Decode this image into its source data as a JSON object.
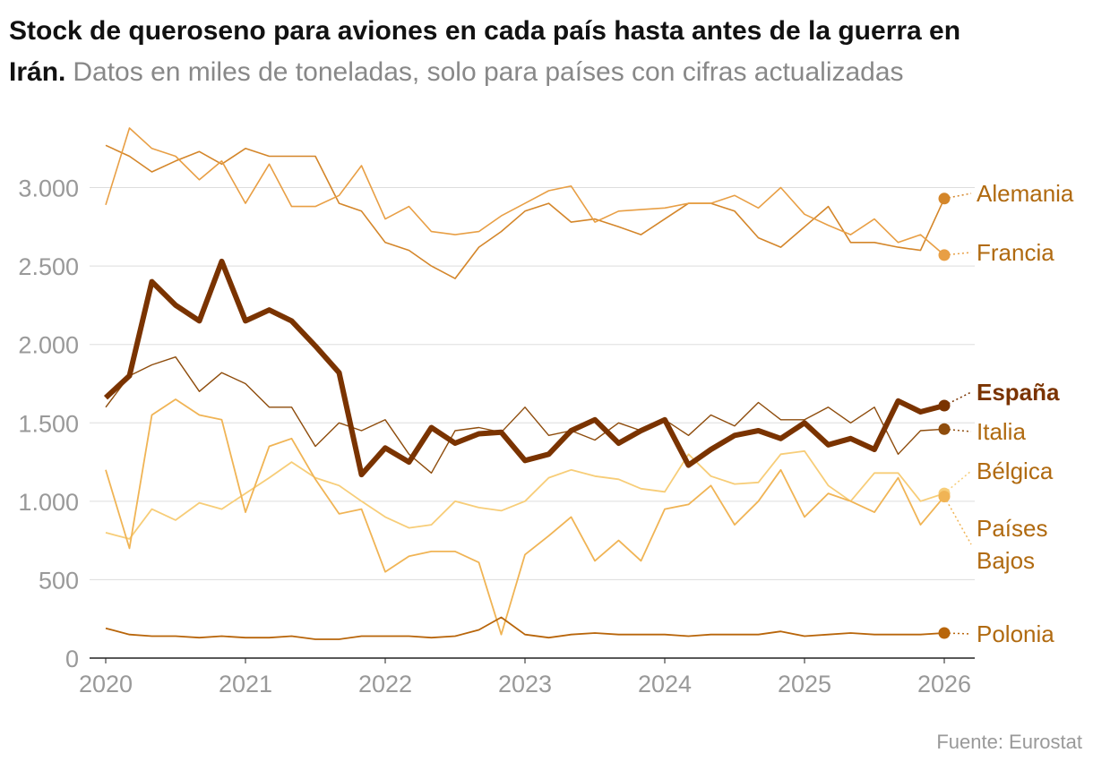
{
  "chart_data": {
    "type": "line",
    "title": "Stock de queroseno para aviones en cada país hasta antes de la guerra en Irán.",
    "subtitle": "Datos en miles de toneladas, solo para países con cifras actualizadas",
    "source": "Fuente: Eurostat",
    "x": [
      2020,
      2020.17,
      2020.33,
      2020.5,
      2020.67,
      2020.83,
      2021,
      2021.17,
      2021.33,
      2021.5,
      2021.67,
      2021.83,
      2022,
      2022.17,
      2022.33,
      2022.5,
      2022.67,
      2022.83,
      2023,
      2023.17,
      2023.33,
      2023.5,
      2023.67,
      2023.83,
      2024,
      2024.17,
      2024.33,
      2024.5,
      2024.67,
      2024.83,
      2025,
      2025.17,
      2025.33,
      2025.5,
      2025.67,
      2025.83,
      2026
    ],
    "xlim": [
      2020,
      2026
    ],
    "xticks": [
      2020,
      2021,
      2022,
      2023,
      2024,
      2025,
      2026
    ],
    "ylim": [
      0,
      3300
    ],
    "yticks": [
      0,
      500,
      {
        "value": 1000,
        "label": "1.000"
      },
      {
        "value": 1500,
        "label": "1.500"
      },
      {
        "value": 2000,
        "label": "2.000"
      },
      {
        "value": 2500,
        "label": "2.500"
      },
      {
        "value": 3000,
        "label": "3.000"
      }
    ],
    "grid": true,
    "series": [
      {
        "name": "Alemania",
        "color": "#d4862a",
        "values": [
          3270,
          3200,
          3100,
          3170,
          3230,
          3150,
          3250,
          3200,
          3200,
          3200,
          2900,
          2850,
          2650,
          2600,
          2500,
          2420,
          2620,
          2720,
          2850,
          2900,
          2780,
          2800,
          2750,
          2700,
          2800,
          2900,
          2900,
          2850,
          2680,
          2620,
          2750,
          2880,
          2650,
          2650,
          2620,
          2600,
          2930
        ]
      },
      {
        "name": "Francia",
        "color": "#e89f45",
        "values": [
          2890,
          3380,
          3250,
          3200,
          3050,
          3170,
          2900,
          3150,
          2880,
          2880,
          2950,
          3140,
          2800,
          2880,
          2720,
          2700,
          2720,
          2820,
          2900,
          2980,
          3010,
          2780,
          2850,
          2860,
          2870,
          2900,
          2900,
          2950,
          2870,
          3000,
          2830,
          2760,
          2700,
          2800,
          2650,
          2700,
          2570
        ]
      },
      {
        "name": "España",
        "color": "#7a3300",
        "values": [
          1660,
          1800,
          2400,
          2250,
          2150,
          2530,
          2150,
          2220,
          2150,
          1990,
          1820,
          1170,
          1340,
          1250,
          1470,
          1370,
          1430,
          1440,
          1260,
          1300,
          1450,
          1520,
          1370,
          1450,
          1520,
          1230,
          1330,
          1420,
          1450,
          1400,
          1500,
          1360,
          1400,
          1330,
          1640,
          1570,
          1610
        ]
      },
      {
        "name": "Italia",
        "color": "#8e4c0c",
        "values": [
          1600,
          1800,
          1870,
          1920,
          1700,
          1820,
          1750,
          1600,
          1600,
          1350,
          1500,
          1450,
          1520,
          1300,
          1180,
          1450,
          1470,
          1440,
          1600,
          1420,
          1450,
          1390,
          1500,
          1450,
          1520,
          1420,
          1550,
          1480,
          1630,
          1520,
          1520,
          1600,
          1500,
          1600,
          1300,
          1450,
          1460
        ]
      },
      {
        "name": "Bélgica",
        "color": "#f7cd78",
        "values": [
          800,
          760,
          950,
          880,
          990,
          950,
          1050,
          1150,
          1250,
          1150,
          1100,
          1000,
          900,
          830,
          850,
          1000,
          960,
          940,
          1000,
          1150,
          1200,
          1160,
          1140,
          1080,
          1060,
          1300,
          1160,
          1110,
          1120,
          1300,
          1320,
          1100,
          1000,
          1180,
          1180,
          1000,
          1050
        ]
      },
      {
        "name": "Países Bajos",
        "color": "#f0b455",
        "values": [
          1200,
          700,
          1550,
          1650,
          1550,
          1520,
          930,
          1350,
          1400,
          1140,
          920,
          950,
          550,
          650,
          680,
          680,
          610,
          150,
          660,
          780,
          900,
          620,
          750,
          620,
          950,
          980,
          1100,
          850,
          1000,
          1200,
          900,
          1050,
          1000,
          930,
          1150,
          850,
          1030
        ]
      },
      {
        "name": "Polonia",
        "color": "#b8650a",
        "values": [
          190,
          150,
          140,
          140,
          130,
          140,
          130,
          130,
          140,
          120,
          120,
          140,
          140,
          140,
          130,
          140,
          180,
          260,
          150,
          130,
          150,
          160,
          150,
          150,
          150,
          140,
          150,
          150,
          150,
          170,
          140,
          150,
          160,
          150,
          150,
          150,
          160
        ]
      }
    ]
  }
}
